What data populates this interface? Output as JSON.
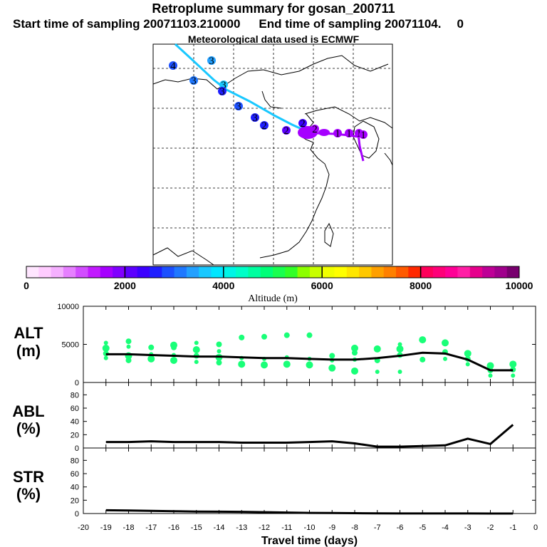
{
  "header": {
    "title": "Retroplume summary for gosan_200711",
    "start_label": "Start time of sampling 20071103.210000",
    "end_label": "End time of sampling 20071104.",
    "end_suffix": "0",
    "met_label": "Meteorological data used is ECMWF"
  },
  "colorbar": {
    "title": "Altitude (m)",
    "tick_labels": [
      "0",
      "2000",
      "4000",
      "6000",
      "8000",
      "10000"
    ],
    "colors": [
      "#ffe6ff",
      "#ffccff",
      "#f5b0ff",
      "#e680ff",
      "#d24dff",
      "#c21aff",
      "#a600ff",
      "#8000ff",
      "#5c00ff",
      "#3c00ff",
      "#1f1fff",
      "#1c50ff",
      "#1f78ff",
      "#23a0ff",
      "#19c8ff",
      "#00e6ff",
      "#00f5e6",
      "#00ffc8",
      "#00ffa0",
      "#00ff78",
      "#19ff50",
      "#32ff28",
      "#8cff00",
      "#c8ff00",
      "#f0ff00",
      "#ffff00",
      "#ffe600",
      "#ffc800",
      "#ffa000",
      "#ff8000",
      "#ff5a00",
      "#ff2800",
      "#ff005a",
      "#ff0078",
      "#ff0096",
      "#ff1ea5",
      "#e6008c",
      "#be0096",
      "#a0008c",
      "#78006e"
    ]
  },
  "map": {
    "trajectory_markers": [
      "4",
      "3",
      "3",
      "3",
      "3",
      "3",
      "3",
      "2",
      "2",
      "2",
      "2",
      "1",
      "1",
      "1",
      "1"
    ]
  },
  "chart_data": [
    {
      "type": "line",
      "panel": "ALT",
      "ylabel_line1": "ALT",
      "ylabel_line2": "(m)",
      "ylim": [
        0,
        10000
      ],
      "yticks": [
        "10000",
        "5000",
        "0"
      ],
      "x": [
        -19,
        -18,
        -17,
        -16,
        -15,
        -14,
        -13,
        -12,
        -11,
        -10,
        -9,
        -8,
        -7,
        -6,
        -5,
        -4,
        -3,
        -2,
        -1
      ],
      "series": [
        {
          "name": "mean altitude",
          "color": "#000000",
          "values": [
            3700,
            3700,
            3600,
            3500,
            3400,
            3400,
            3300,
            3200,
            3200,
            3100,
            3000,
            3000,
            3200,
            3500,
            3900,
            3800,
            3000,
            1600,
            1600
          ]
        }
      ],
      "scatter_points": [
        [
          -19,
          3200
        ],
        [
          -19,
          3800
        ],
        [
          -19,
          4500
        ],
        [
          -19,
          5200
        ],
        [
          -18,
          2900
        ],
        [
          -18,
          3500
        ],
        [
          -18,
          4700
        ],
        [
          -18,
          5400
        ],
        [
          -17,
          3100
        ],
        [
          -17,
          3700
        ],
        [
          -17,
          4600
        ],
        [
          -16,
          2900
        ],
        [
          -16,
          3600
        ],
        [
          -16,
          4600
        ],
        [
          -16,
          4900
        ],
        [
          -15,
          2700
        ],
        [
          -15,
          3500
        ],
        [
          -15,
          4300
        ],
        [
          -15,
          5200
        ],
        [
          -14,
          2600
        ],
        [
          -14,
          3300
        ],
        [
          -14,
          4100
        ],
        [
          -14,
          5000
        ],
        [
          -13,
          2400
        ],
        [
          -13,
          3200
        ],
        [
          -13,
          5900
        ],
        [
          -12,
          2300
        ],
        [
          -12,
          3100
        ],
        [
          -12,
          6000
        ],
        [
          -11,
          2400
        ],
        [
          -11,
          3300
        ],
        [
          -11,
          6200
        ],
        [
          -10,
          2300
        ],
        [
          -10,
          3100
        ],
        [
          -10,
          6200
        ],
        [
          -9,
          1900
        ],
        [
          -9,
          2900
        ],
        [
          -9,
          3500
        ],
        [
          -8,
          1500
        ],
        [
          -8,
          3000
        ],
        [
          -8,
          3900
        ],
        [
          -8,
          4500
        ],
        [
          -7,
          1400
        ],
        [
          -7,
          2900
        ],
        [
          -7,
          4400
        ],
        [
          -6,
          1400
        ],
        [
          -6,
          3600
        ],
        [
          -6,
          4400
        ],
        [
          -6,
          5000
        ],
        [
          -5,
          3000
        ],
        [
          -5,
          5600
        ],
        [
          -4,
          3100
        ],
        [
          -4,
          4000
        ],
        [
          -4,
          5200
        ],
        [
          -3,
          2400
        ],
        [
          -3,
          3100
        ],
        [
          -3,
          3800
        ],
        [
          -2,
          900
        ],
        [
          -2,
          1600
        ],
        [
          -2,
          2200
        ],
        [
          -1,
          900
        ],
        [
          -1,
          1700
        ],
        [
          -1,
          2400
        ]
      ]
    },
    {
      "type": "line",
      "panel": "ABL",
      "ylabel_line1": "ABL",
      "ylabel_line2": "(%)",
      "ylim": [
        0,
        90
      ],
      "yticks": [
        "80",
        "60",
        "40",
        "20",
        "0"
      ],
      "x": [
        -19,
        -18,
        -17,
        -16,
        -15,
        -14,
        -13,
        -12,
        -11,
        -10,
        -9,
        -8,
        -7,
        -6,
        -5,
        -4,
        -3,
        -2,
        -1
      ],
      "series": [
        {
          "name": "ABL fraction",
          "color": "#000000",
          "values": [
            9,
            9,
            10,
            9,
            9,
            9,
            8,
            8,
            8,
            9,
            10,
            7,
            2,
            2,
            3,
            4,
            14,
            6,
            35
          ]
        }
      ]
    },
    {
      "type": "line",
      "panel": "STR",
      "ylabel_line1": "STR",
      "ylabel_line2": "(%)",
      "ylim": [
        0,
        90
      ],
      "yticks": [
        "80",
        "60",
        "40",
        "20",
        "0"
      ],
      "x": [
        -19,
        -18,
        -17,
        -16,
        -15,
        -14,
        -13,
        -12,
        -11,
        -10,
        -9,
        -8,
        -7,
        -6,
        -5,
        -4,
        -3,
        -2,
        -1
      ],
      "series": [
        {
          "name": "stratosphere fraction",
          "color": "#000000",
          "values": [
            5,
            4.5,
            4,
            3.5,
            3,
            2.8,
            2.5,
            2,
            1.5,
            1,
            0.8,
            0.5,
            0.3,
            0.2,
            0.2,
            0.1,
            0.1,
            0,
            0
          ]
        }
      ]
    }
  ],
  "x_axis": {
    "label": "Travel time (days)",
    "tick_labels": [
      "-20",
      "-19",
      "-18",
      "-17",
      "-16",
      "-15",
      "-14",
      "-13",
      "-12",
      "-11",
      "-10",
      "-9",
      "-8",
      "-7",
      "-6",
      "-5",
      "-4",
      "-3",
      "-2",
      "-1",
      "0"
    ]
  }
}
